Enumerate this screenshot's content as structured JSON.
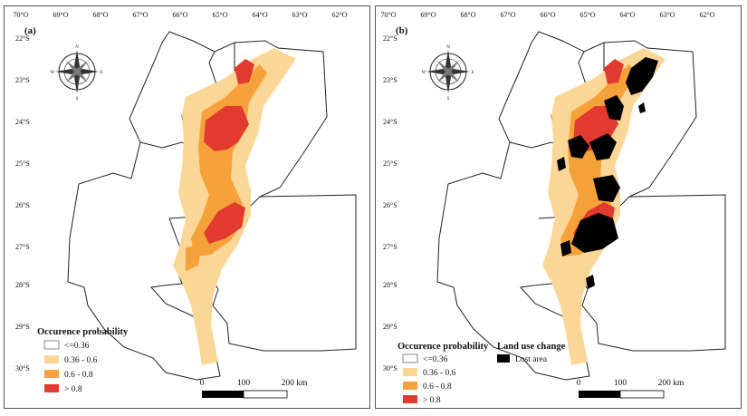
{
  "panels": [
    {
      "label": "(a)",
      "legend": {
        "title": "Occurence probability",
        "items": [
          {
            "label": "<=0.36",
            "color": "#ffffff"
          },
          {
            "label": "0.36 - 0.6",
            "color": "#fbd797"
          },
          {
            "label": "0.6 - 0.8",
            "color": "#f6a23a"
          },
          {
            "label": "> 0.8",
            "color": "#e23a2e"
          }
        ]
      }
    },
    {
      "label": "(b)",
      "legend": {
        "title": "Occurence probability",
        "items": [
          {
            "label": "<=0.36",
            "color": "#ffffff"
          },
          {
            "label": "0.36 - 0.6",
            "color": "#fbd797"
          },
          {
            "label": "0.6 - 0.8",
            "color": "#f6a23a"
          },
          {
            "label": "> 0.8",
            "color": "#e23a2e"
          }
        ]
      },
      "legend2": {
        "title": "Land use change",
        "items": [
          {
            "label": "Lost area",
            "color": "#000000"
          }
        ]
      }
    }
  ],
  "axes": {
    "lon_ticks": [
      "70°O",
      "69°O",
      "68°O",
      "67°O",
      "66°O",
      "65°O",
      "64°O",
      "63°O",
      "62°O"
    ],
    "lat_ticks": [
      "22°S",
      "23°S",
      "24°S",
      "25°S",
      "26°S",
      "27°S",
      "28°S",
      "29°S",
      "30°S"
    ]
  },
  "scalebar": {
    "ticks": [
      "0",
      "100",
      "200 km"
    ]
  },
  "compass": {
    "n": "N",
    "s": "S",
    "e": "E",
    "w": "W"
  }
}
